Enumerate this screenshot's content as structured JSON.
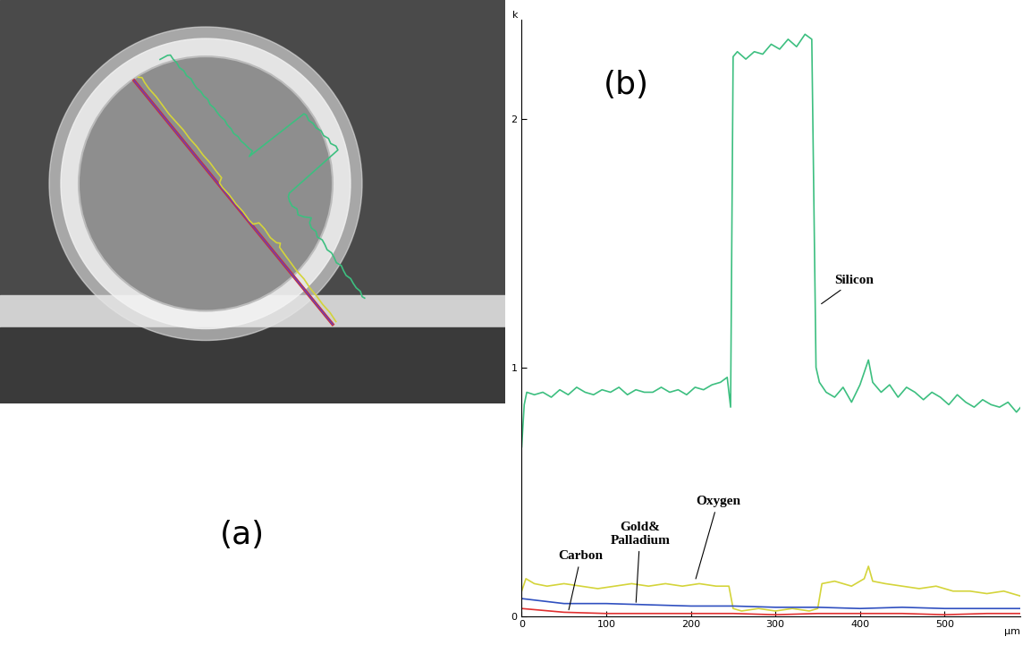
{
  "image": {
    "label": "(a)"
  },
  "chart_data": {
    "type": "line",
    "panel_label": "(b)",
    "x_label": "µm",
    "y_label": "k",
    "xlim": [
      0,
      590
    ],
    "ylim": [
      0,
      2.4
    ],
    "xticks": [
      0,
      100,
      200,
      300,
      400,
      500
    ],
    "yticks": [
      0,
      1,
      2
    ],
    "grid": false,
    "series": [
      {
        "name": "Silicon",
        "color": "#3dbf80",
        "x": [
          0,
          3,
          6,
          15,
          25,
          35,
          45,
          55,
          65,
          75,
          85,
          95,
          105,
          115,
          125,
          135,
          145,
          155,
          165,
          175,
          185,
          195,
          205,
          215,
          225,
          235,
          243,
          247,
          250,
          255,
          265,
          275,
          285,
          295,
          305,
          315,
          325,
          335,
          343,
          348,
          352,
          360,
          370,
          380,
          390,
          400,
          405,
          410,
          415,
          425,
          435,
          445,
          455,
          465,
          475,
          485,
          495,
          505,
          515,
          525,
          535,
          545,
          555,
          565,
          575,
          585,
          590
        ],
        "values": [
          0.68,
          0.85,
          0.9,
          0.89,
          0.9,
          0.88,
          0.91,
          0.89,
          0.92,
          0.9,
          0.89,
          0.91,
          0.9,
          0.92,
          0.89,
          0.91,
          0.9,
          0.9,
          0.92,
          0.9,
          0.91,
          0.89,
          0.92,
          0.91,
          0.93,
          0.94,
          0.96,
          0.84,
          2.25,
          2.27,
          2.24,
          2.27,
          2.26,
          2.3,
          2.28,
          2.32,
          2.29,
          2.34,
          2.32,
          1.0,
          0.94,
          0.9,
          0.88,
          0.92,
          0.86,
          0.93,
          0.98,
          1.03,
          0.94,
          0.9,
          0.93,
          0.88,
          0.92,
          0.9,
          0.87,
          0.9,
          0.88,
          0.85,
          0.89,
          0.86,
          0.84,
          0.87,
          0.85,
          0.84,
          0.86,
          0.82,
          0.84
        ]
      },
      {
        "name": "Oxygen",
        "color": "#d4d43a",
        "x": [
          0,
          5,
          15,
          30,
          50,
          70,
          90,
          110,
          130,
          150,
          170,
          190,
          210,
          230,
          245,
          250,
          260,
          280,
          300,
          320,
          340,
          350,
          355,
          370,
          390,
          405,
          410,
          415,
          430,
          450,
          470,
          490,
          510,
          530,
          550,
          570,
          590
        ],
        "values": [
          0.1,
          0.15,
          0.13,
          0.12,
          0.13,
          0.12,
          0.11,
          0.12,
          0.13,
          0.12,
          0.13,
          0.12,
          0.13,
          0.12,
          0.12,
          0.03,
          0.02,
          0.03,
          0.02,
          0.03,
          0.02,
          0.03,
          0.13,
          0.14,
          0.12,
          0.15,
          0.2,
          0.14,
          0.13,
          0.12,
          0.11,
          0.12,
          0.1,
          0.1,
          0.09,
          0.1,
          0.08
        ]
      },
      {
        "name": "Gold&\nPalladium",
        "color": "#3050c0",
        "x": [
          0,
          50,
          100,
          150,
          200,
          250,
          300,
          350,
          400,
          450,
          500,
          550,
          590
        ],
        "values": [
          0.07,
          0.05,
          0.05,
          0.045,
          0.04,
          0.04,
          0.035,
          0.035,
          0.03,
          0.035,
          0.03,
          0.03,
          0.03
        ]
      },
      {
        "name": "Carbon",
        "color": "#e03030",
        "x": [
          0,
          50,
          100,
          150,
          200,
          250,
          300,
          350,
          400,
          450,
          500,
          550,
          590
        ],
        "values": [
          0.03,
          0.015,
          0.01,
          0.01,
          0.01,
          0.01,
          0.005,
          0.01,
          0.01,
          0.01,
          0.005,
          0.01,
          0.01
        ]
      }
    ]
  }
}
